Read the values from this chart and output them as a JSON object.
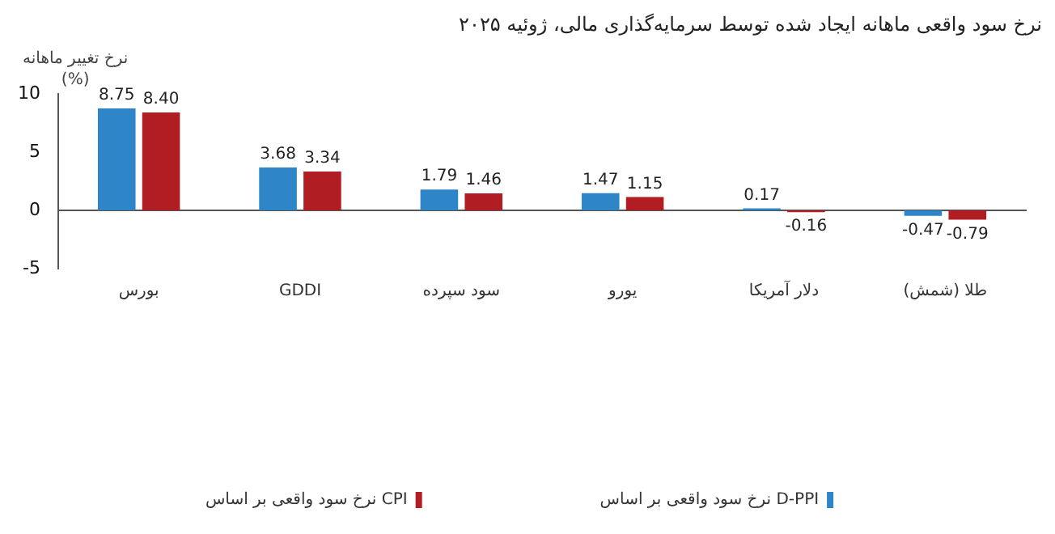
{
  "chart_data": {
    "type": "bar",
    "title": "نرخ سود واقعی ماهانه ایجاد شده توسط سرمایه‌گذاری مالی، ژوئیه ۲۰۲۵",
    "ylabel": "نرخ تغییر ماهانه\n(%)",
    "categories": [
      "بورس",
      "GDDI",
      "سود سپرده",
      "یورو",
      "دلار آمریکا",
      "طلا (شمش)"
    ],
    "series": [
      {
        "name": "نرخ سود واقعی بر اساس D-PPI",
        "color": "#2e86c8",
        "values": [
          8.75,
          3.68,
          1.79,
          1.47,
          0.17,
          -0.47
        ],
        "value_labels": [
          "8.75",
          "3.68",
          "1.79",
          "1.47",
          "0.17",
          "-0.47"
        ]
      },
      {
        "name": "نرخ سود واقعی بر اساس CPI",
        "color": "#b01e23",
        "values": [
          8.4,
          3.34,
          1.46,
          1.15,
          -0.16,
          -0.79
        ],
        "value_labels": [
          "8.40",
          "3.34",
          "1.46",
          "1.15",
          "-0.16",
          "-0.79"
        ]
      }
    ],
    "ylim": [
      -5,
      10
    ],
    "yticks": [
      -5,
      0,
      5,
      10
    ],
    "legend": "bottom"
  }
}
